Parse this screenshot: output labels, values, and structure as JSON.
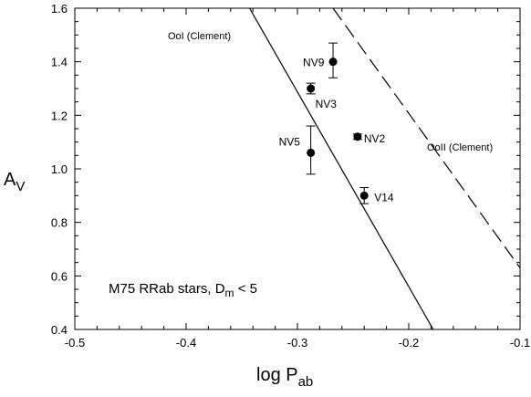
{
  "chart_data": {
    "type": "scatter",
    "title": "",
    "xlabel": "log P",
    "xlabel_sub": "ab",
    "ylabel": "A",
    "ylabel_sub": "V",
    "xlim": [
      -0.5,
      -0.1
    ],
    "ylim": [
      0.4,
      1.6
    ],
    "xticks": [
      -0.5,
      -0.4,
      -0.3,
      -0.2,
      -0.1
    ],
    "yticks": [
      0.4,
      0.6,
      0.8,
      1.0,
      1.2,
      1.4,
      1.6
    ],
    "xtick_labels": [
      "-0.5",
      "-0.4",
      "-0.3",
      "-0.2",
      "-0.1"
    ],
    "ytick_labels": [
      "0.4",
      "0.6",
      "0.8",
      "1.0",
      "1.2",
      "1.4",
      "1.6"
    ],
    "grid": false,
    "points": [
      {
        "label": "NV9",
        "x": -0.268,
        "y": 1.4,
        "yerr_low": 1.34,
        "yerr_high": 1.47
      },
      {
        "label": "NV3",
        "x": -0.288,
        "y": 1.3,
        "yerr_low": 1.28,
        "yerr_high": 1.32
      },
      {
        "label": "NV2",
        "x": -0.246,
        "y": 1.12,
        "yerr_low": 1.11,
        "yerr_high": 1.13
      },
      {
        "label": "NV5",
        "x": -0.288,
        "y": 1.06,
        "yerr_low": 0.98,
        "yerr_high": 1.16
      },
      {
        "label": "V14",
        "x": -0.24,
        "y": 0.9,
        "yerr_low": 0.87,
        "yerr_high": 0.93
      }
    ],
    "lines": [
      {
        "name": "OoI (Clement)",
        "style": "solid",
        "x": [
          -0.343,
          -0.178
        ],
        "y": [
          1.6,
          0.4
        ]
      },
      {
        "name": "OoII (Clement)",
        "style": "dashed",
        "x": [
          -0.268,
          -0.1
        ],
        "y": [
          1.6,
          0.63
        ]
      }
    ],
    "annotations": {
      "ooi": "OoI (Clement)",
      "ooii": "OoII (Clement)",
      "sample": "M75 RRab stars, D",
      "sample_sub": "m",
      "sample_tail": " < 5"
    }
  }
}
